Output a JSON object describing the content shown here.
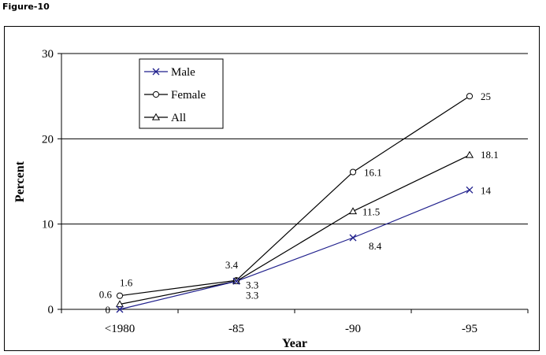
{
  "figure_label": "Figure-10",
  "chart_data": {
    "type": "line",
    "categories": [
      "<1980",
      "-85",
      "-90",
      "-95"
    ],
    "xlabel": "Year",
    "ylabel": "Percent",
    "ylim": [
      0,
      30
    ],
    "yticks": [
      0,
      10,
      20,
      30
    ],
    "grid": "horizontal",
    "legend_position": "top-left",
    "series": [
      {
        "name": "Male",
        "values": [
          0,
          3.3,
          8.4,
          14
        ],
        "labels": [
          "0",
          "3.3",
          "8.4",
          "14"
        ],
        "marker": "x",
        "color": "#1f1f8c"
      },
      {
        "name": "Female",
        "values": [
          1.6,
          3.4,
          16.1,
          25
        ],
        "labels": [
          "1.6",
          "3.4",
          "16.1",
          "25"
        ],
        "marker": "circle",
        "color": "#000000"
      },
      {
        "name": "All",
        "values": [
          0.6,
          3.3,
          11.5,
          18.1
        ],
        "labels": [
          "0.6",
          "3.3",
          "11.5",
          "18.1"
        ],
        "marker": "triangle",
        "color": "#000000"
      }
    ]
  }
}
